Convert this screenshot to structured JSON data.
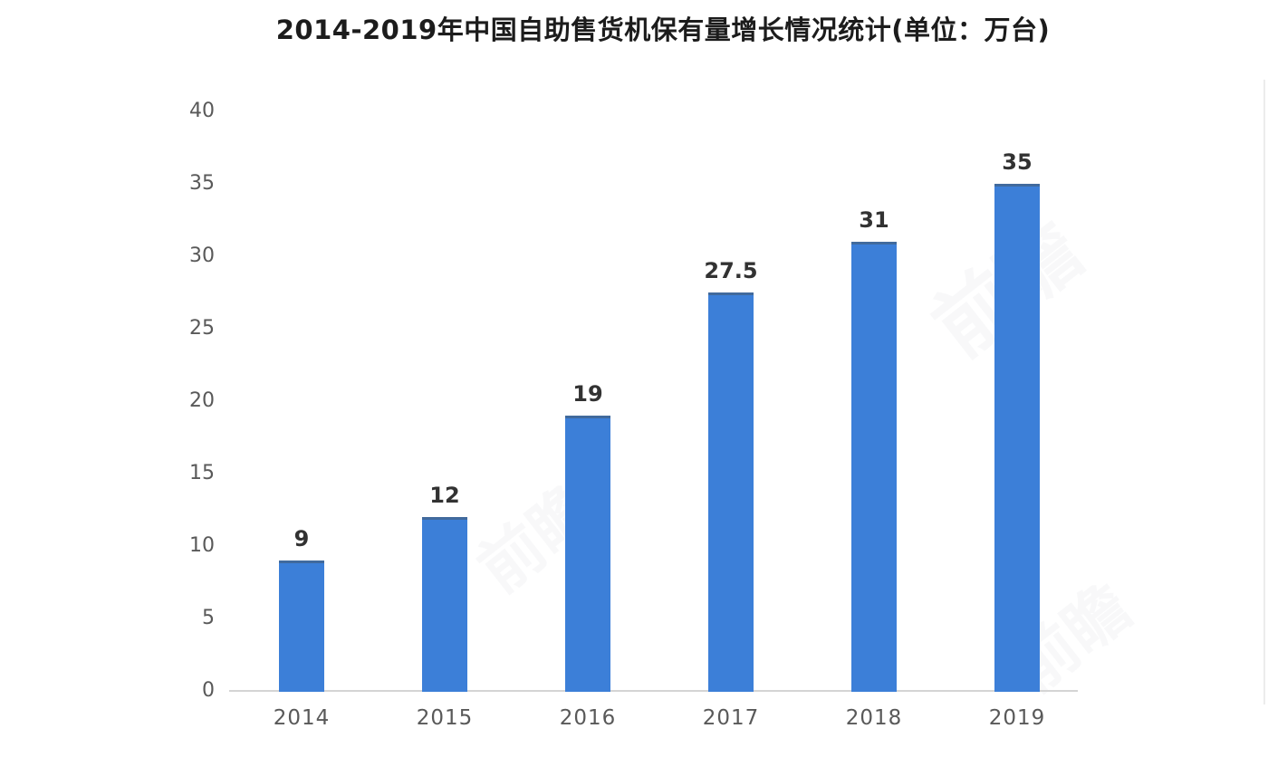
{
  "chart_data": {
    "type": "bar",
    "title": "2014-2019年中国自助售货机保有量增长情况统计(单位：万台)",
    "categories": [
      "2014",
      "2015",
      "2016",
      "2017",
      "2018",
      "2019"
    ],
    "values": [
      9,
      12,
      19,
      27.5,
      31,
      35
    ],
    "xlabel": "",
    "ylabel": "",
    "unit": "万台",
    "ylim": [
      0,
      40
    ],
    "y_ticks": [
      0,
      5,
      10,
      15,
      20,
      25,
      30,
      35,
      40
    ],
    "grid": false,
    "legend": "none",
    "bar_color": "#3c7fd8",
    "axis_line_color": "#d4d4d4",
    "tick_label_color": "#595959",
    "value_label_color": "#323232",
    "title_color": "#1c1c1c"
  },
  "watermark": {
    "text": "前瞻",
    "color": "#8a93a6"
  }
}
